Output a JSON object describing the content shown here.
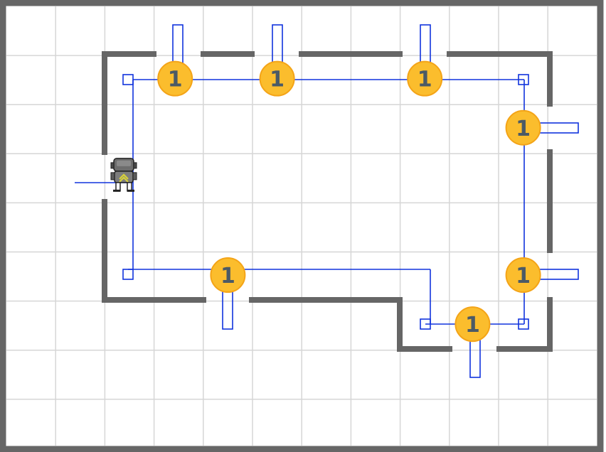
{
  "board": {
    "columns": 12,
    "rows": 9,
    "frame_color": "#666666",
    "grid_color": "#d6d6d6",
    "wall_color": "#666666",
    "path_color": "#1133dd"
  },
  "coins": [
    {
      "col": 3,
      "row": 1,
      "label": "1"
    },
    {
      "col": 5,
      "row": 1,
      "label": "1"
    },
    {
      "col": 8,
      "row": 1,
      "label": "1"
    },
    {
      "col": 10,
      "row": 2,
      "label": "1"
    },
    {
      "col": 4,
      "row": 5,
      "label": "1"
    },
    {
      "col": 10,
      "row": 5,
      "label": "1"
    },
    {
      "col": 9,
      "row": 6,
      "label": "1"
    }
  ],
  "coin_style": {
    "fill": "#fbbd2d",
    "ring": "#f4a417",
    "text_color": "#4b5a66"
  },
  "player": {
    "col": 2,
    "row": 3,
    "facing": "up",
    "icon": "robot-icon"
  }
}
